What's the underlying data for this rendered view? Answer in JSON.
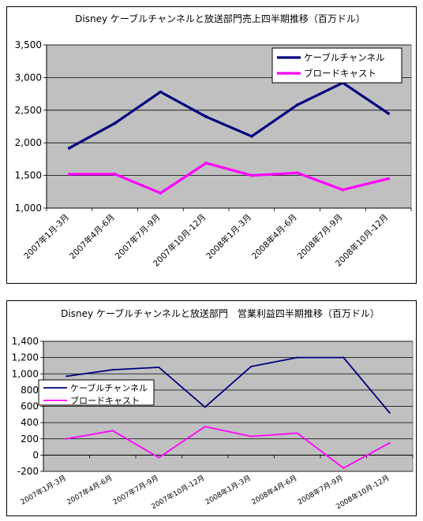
{
  "chart_data": [
    {
      "type": "line",
      "title": "Disney ケーブルチャンネルと放送部門売上四半期推移（百万ドル）",
      "categories": [
        "2007年1月-3月",
        "2007年4月-6月",
        "2007年7月-9月",
        "2007年10月-12月",
        "2008年1月-3月",
        "2008年4月-6月",
        "2008年7月-9月",
        "2008年10月-12月"
      ],
      "ylim": [
        1000,
        3500
      ],
      "yticks": [
        "1,000",
        "1,500",
        "2,000",
        "2,500",
        "3,000",
        "3,500"
      ],
      "grid": true,
      "legend_position": "top-right",
      "series": [
        {
          "name": "ケーブルチャンネル",
          "color": "#000080",
          "values": [
            1920,
            2300,
            2780,
            2400,
            2100,
            2580,
            2920,
            2450
          ]
        },
        {
          "name": "ブロードキャスト",
          "color": "#ff00ff",
          "values": [
            1520,
            1520,
            1230,
            1690,
            1500,
            1540,
            1280,
            1450
          ]
        }
      ]
    },
    {
      "type": "line",
      "title": "Disney ケーブルチャンネルと放送部門　営業利益四半期推移（百万ドル）",
      "categories": [
        "2007年1月-3月",
        "2007年4月-6月",
        "2007年7月-9月",
        "2007年10月-12月",
        "2008年1月-3月",
        "2008年4月-6月",
        "2008年7月-9月",
        "2008年10月-12月"
      ],
      "ylim": [
        -200,
        1400
      ],
      "yticks": [
        "-200",
        "0",
        "200",
        "400",
        "600",
        "800",
        "1,000",
        "1,200",
        "1,400"
      ],
      "grid": true,
      "legend_position": "middle-left",
      "series": [
        {
          "name": "ケーブルチャンネル",
          "color": "#000080",
          "values": [
            970,
            1050,
            1080,
            590,
            1090,
            1200,
            1200,
            520
          ]
        },
        {
          "name": "ブロードキャスト",
          "color": "#ff00ff",
          "values": [
            200,
            300,
            -30,
            350,
            230,
            270,
            -160,
            150
          ]
        }
      ]
    }
  ]
}
